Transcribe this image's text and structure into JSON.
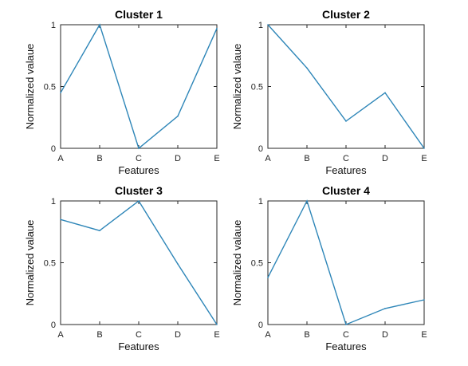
{
  "chart_data": [
    {
      "type": "line",
      "title": "Cluster 1",
      "xlabel": "Features",
      "ylabel": "Normalized valaue",
      "categories": [
        "A",
        "B",
        "C",
        "D",
        "E"
      ],
      "values": [
        0.45,
        1.0,
        0.0,
        0.26,
        0.97
      ],
      "ylim": [
        0,
        1
      ],
      "yticks": [
        "0",
        "0.5",
        "1"
      ],
      "grid": false,
      "line_color": "#2e86b8"
    },
    {
      "type": "line",
      "title": "Cluster 2",
      "xlabel": "Features",
      "ylabel": "Normalized valaue",
      "categories": [
        "A",
        "B",
        "C",
        "D",
        "E"
      ],
      "values": [
        1.0,
        0.65,
        0.22,
        0.45,
        0.0
      ],
      "ylim": [
        0,
        1
      ],
      "yticks": [
        "0",
        "0.5",
        "1"
      ],
      "grid": false,
      "line_color": "#2e86b8"
    },
    {
      "type": "line",
      "title": "Cluster 3",
      "xlabel": "Features",
      "ylabel": "Normalized valaue",
      "categories": [
        "A",
        "B",
        "C",
        "D",
        "E"
      ],
      "values": [
        0.85,
        0.76,
        1.0,
        0.49,
        0.0
      ],
      "ylim": [
        0,
        1
      ],
      "yticks": [
        "0",
        "0.5",
        "1"
      ],
      "grid": false,
      "line_color": "#2e86b8"
    },
    {
      "type": "line",
      "title": "Cluster 4",
      "xlabel": "Features",
      "ylabel": "Normalized valaue",
      "categories": [
        "A",
        "B",
        "C",
        "D",
        "E"
      ],
      "values": [
        0.38,
        1.0,
        0.0,
        0.13,
        0.2
      ],
      "ylim": [
        0,
        1
      ],
      "yticks": [
        "0",
        "0.5",
        "1"
      ],
      "grid": false,
      "line_color": "#2e86b8"
    }
  ]
}
